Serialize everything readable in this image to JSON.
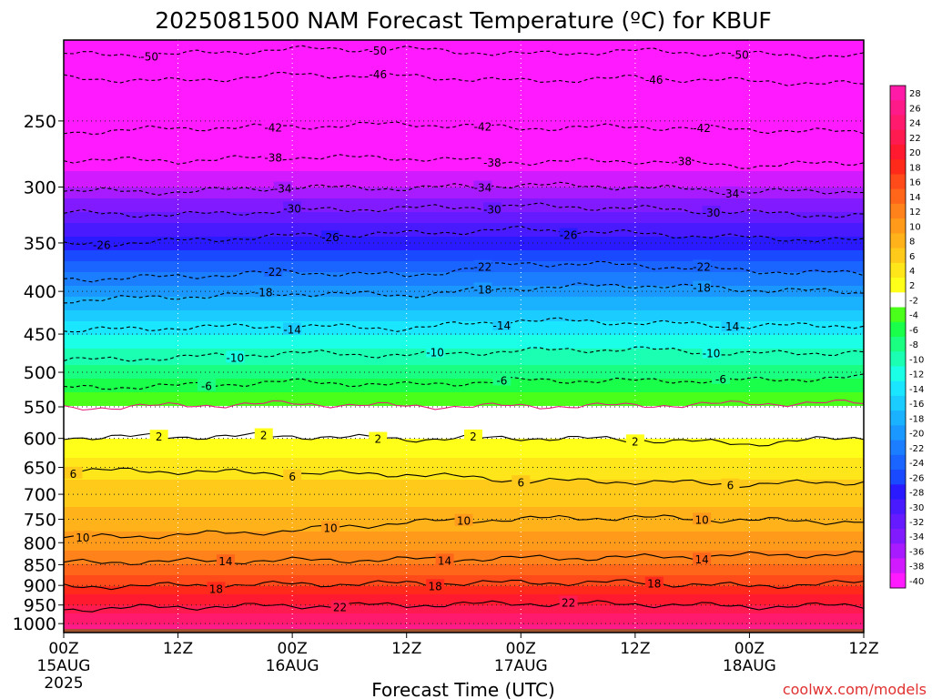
{
  "chart_data": {
    "type": "heatmap",
    "title": "2025081500 NAM Forecast Temperature (ºC) for KBUF",
    "xlabel": "Forecast Time (UTC)",
    "ylabel": "",
    "credit": "coolwx.com/models",
    "y_scale": "log",
    "ylim": [
      1025,
      200
    ],
    "y_ticks": [
      250,
      300,
      350,
      400,
      450,
      500,
      550,
      600,
      650,
      700,
      750,
      800,
      850,
      900,
      950,
      1000
    ],
    "xlim": [
      0,
      84
    ],
    "x_ticks": [
      {
        "x": 0,
        "lines": [
          "00Z",
          "15AUG",
          "2025"
        ]
      },
      {
        "x": 12,
        "lines": [
          "12Z"
        ]
      },
      {
        "x": 24,
        "lines": [
          "00Z",
          "16AUG"
        ]
      },
      {
        "x": 36,
        "lines": [
          "12Z"
        ]
      },
      {
        "x": 48,
        "lines": [
          "00Z",
          "17AUG"
        ]
      },
      {
        "x": 60,
        "lines": [
          "12Z"
        ]
      },
      {
        "x": 72,
        "lines": [
          "00Z",
          "18AUG"
        ]
      },
      {
        "x": 84,
        "lines": [
          "12Z"
        ]
      }
    ],
    "x_grid": true,
    "y_grid": true,
    "legend_position": "right",
    "legend_levels": [
      28,
      26,
      24,
      22,
      20,
      18,
      16,
      14,
      12,
      10,
      8,
      6,
      4,
      2,
      -2,
      -4,
      -6,
      -8,
      -10,
      -12,
      -14,
      -16,
      -18,
      -20,
      -22,
      -24,
      -26,
      -28,
      -30,
      -32,
      -34,
      -36,
      -38,
      -40
    ],
    "legend_colors": [
      "#ff1aa8",
      "#ff1a8a",
      "#ff1a6e",
      "#ff1a50",
      "#ff1a30",
      "#ff2a1a",
      "#ff4a1a",
      "#ff661a",
      "#ff821a",
      "#ff9a1a",
      "#ffb21a",
      "#ffca1a",
      "#ffe61a",
      "#ffff1a",
      "#ffffff",
      "#4aff1a",
      "#1aff4a",
      "#1aff82",
      "#1affb2",
      "#1affe6",
      "#1ae6ff",
      "#1accff",
      "#1ab2ff",
      "#1a98ff",
      "#1a7eff",
      "#1a64ff",
      "#1a4aff",
      "#2a1aff",
      "#4a1aff",
      "#661aff",
      "#821aff",
      "#a81aff",
      "#d21aff",
      "#ff1aff"
    ],
    "ground_color": "#a0522d",
    "temperature_profile": [
      {
        "p": 200,
        "t": -52
      },
      {
        "p": 250,
        "t": -44
      },
      {
        "p": 300,
        "t": -36
      },
      {
        "p": 350,
        "t": -27
      },
      {
        "p": 400,
        "t": -19
      },
      {
        "p": 450,
        "t": -12
      },
      {
        "p": 500,
        "t": -7
      },
      {
        "p": 550,
        "t": -2
      },
      {
        "p": 600,
        "t": 2
      },
      {
        "p": 650,
        "t": 5
      },
      {
        "p": 700,
        "t": 7
      },
      {
        "p": 750,
        "t": 9
      },
      {
        "p": 800,
        "t": 11
      },
      {
        "p": 850,
        "t": 14
      },
      {
        "p": 900,
        "t": 18
      },
      {
        "p": 950,
        "t": 22
      },
      {
        "p": 1000,
        "t": 26
      }
    ],
    "isotherms": [
      {
        "t": -50,
        "p": [
          208,
          208,
          205,
          205,
          208,
          206,
          208,
          209
        ]
      },
      {
        "t": -46,
        "p": [
          222,
          224,
          220,
          221,
          224,
          222,
          224,
          226
        ]
      },
      {
        "t": -42,
        "p": [
          258,
          255,
          254,
          252,
          255,
          254,
          256,
          258
        ]
      },
      {
        "t": -38,
        "p": [
          278,
          279,
          276,
          277,
          280,
          279,
          283,
          280
        ]
      },
      {
        "t": -34,
        "p": [
          303,
          304,
          300,
          301,
          298,
          300,
          304,
          303
        ]
      },
      {
        "t": -30,
        "p": [
          322,
          324,
          320,
          318,
          316,
          318,
          322,
          325
        ]
      },
      {
        "t": -26,
        "p": [
          352,
          348,
          343,
          341,
          337,
          341,
          345,
          348
        ]
      },
      {
        "t": -22,
        "p": [
          387,
          384,
          379,
          383,
          370,
          372,
          378,
          381
        ]
      },
      {
        "t": -18,
        "p": [
          410,
          406,
          402,
          404,
          396,
          393,
          398,
          401
        ]
      },
      {
        "t": -14,
        "p": [
          446,
          442,
          440,
          443,
          433,
          436,
          440,
          439
        ]
      },
      {
        "t": -10,
        "p": [
          484,
          480,
          474,
          477,
          471,
          469,
          475,
          473
        ]
      },
      {
        "t": -6,
        "p": [
          522,
          519,
          513,
          518,
          511,
          512,
          511,
          507
        ]
      },
      {
        "t": -2,
        "p": [
          552,
          548,
          545,
          549,
          549,
          548,
          545,
          544
        ]
      },
      {
        "t": 2,
        "p": [
          598,
          597,
          596,
          601,
          599,
          602,
          609,
          598
        ]
      },
      {
        "t": 6,
        "p": [
          655,
          657,
          661,
          662,
          674,
          676,
          681,
          676
        ]
      },
      {
        "t": 10,
        "p": [
          790,
          783,
          774,
          756,
          749,
          746,
          752,
          755
        ]
      },
      {
        "t": 14,
        "p": [
          845,
          842,
          840,
          838,
          835,
          833,
          828,
          826
        ]
      },
      {
        "t": 18,
        "p": [
          903,
          900,
          897,
          895,
          893,
          893,
          902,
          893
        ]
      },
      {
        "t": 22,
        "p": [
          961,
          955,
          952,
          950,
          946,
          947,
          954,
          951
        ]
      }
    ],
    "isotherm_labels": [
      {
        "t": -50,
        "x": 9
      },
      {
        "t": -50,
        "x": 33
      },
      {
        "t": -50,
        "x": 71
      },
      {
        "t": -46,
        "x": 33
      },
      {
        "t": -46,
        "x": 62
      },
      {
        "t": -42,
        "x": 22
      },
      {
        "t": -42,
        "x": 44
      },
      {
        "t": -42,
        "x": 67
      },
      {
        "t": -38,
        "x": 22
      },
      {
        "t": -38,
        "x": 45
      },
      {
        "t": -38,
        "x": 65
      },
      {
        "t": -34,
        "x": 23
      },
      {
        "t": -34,
        "x": 44
      },
      {
        "t": -34,
        "x": 70
      },
      {
        "t": -30,
        "x": 24
      },
      {
        "t": -30,
        "x": 45
      },
      {
        "t": -30,
        "x": 68
      },
      {
        "t": -26,
        "x": 4
      },
      {
        "t": -26,
        "x": 28
      },
      {
        "t": -26,
        "x": 53
      },
      {
        "t": -22,
        "x": 22
      },
      {
        "t": -22,
        "x": 44
      },
      {
        "t": -22,
        "x": 67
      },
      {
        "t": -18,
        "x": 21
      },
      {
        "t": -18,
        "x": 44
      },
      {
        "t": -18,
        "x": 67
      },
      {
        "t": -14,
        "x": 24
      },
      {
        "t": -14,
        "x": 46
      },
      {
        "t": -14,
        "x": 70
      },
      {
        "t": -10,
        "x": 18
      },
      {
        "t": -10,
        "x": 39
      },
      {
        "t": -10,
        "x": 68
      },
      {
        "t": -6,
        "x": 15
      },
      {
        "t": -6,
        "x": 46
      },
      {
        "t": -6,
        "x": 69
      },
      {
        "t": 2,
        "x": 10
      },
      {
        "t": 2,
        "x": 33
      },
      {
        "t": 2,
        "x": 60
      },
      {
        "t": 2,
        "x": 21
      },
      {
        "t": 2,
        "x": 43
      },
      {
        "t": 6,
        "x": 1
      },
      {
        "t": 6,
        "x": 24
      },
      {
        "t": 6,
        "x": 48
      },
      {
        "t": 6,
        "x": 70
      },
      {
        "t": 10,
        "x": 2
      },
      {
        "t": 10,
        "x": 28
      },
      {
        "t": 10,
        "x": 42
      },
      {
        "t": 10,
        "x": 67
      },
      {
        "t": 14,
        "x": 17
      },
      {
        "t": 14,
        "x": 40
      },
      {
        "t": 14,
        "x": 67
      },
      {
        "t": 18,
        "x": 16
      },
      {
        "t": 18,
        "x": 39
      },
      {
        "t": 18,
        "x": 62
      },
      {
        "t": 22,
        "x": 29
      },
      {
        "t": 22,
        "x": 53
      }
    ]
  }
}
